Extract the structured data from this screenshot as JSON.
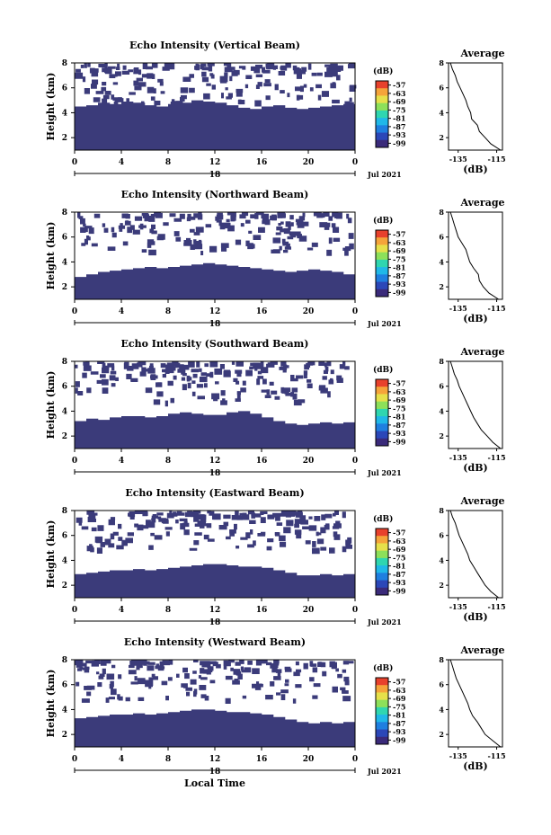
{
  "figure": {
    "colors": {
      "fill": "#3b3b7a",
      "colormap": [
        "#3a2a7a",
        "#2b47b8",
        "#1f7fe0",
        "#20b8e8",
        "#2fd6b0",
        "#8de05a",
        "#e6e04a",
        "#f5a43a",
        "#e8412c"
      ]
    }
  },
  "chart_data": [
    {
      "type": "heatmap",
      "title": "Echo Intensity (Vertical Beam)",
      "ylabel": "Height (km)",
      "xlabel": "",
      "x_ticks": [
        "0",
        "4",
        "8",
        "12",
        "16",
        "20",
        "0"
      ],
      "date_marker": "18",
      "date_label": "Jul 2021",
      "ylim": [
        1,
        8
      ],
      "y_ticks": [
        "2",
        "4",
        "6",
        "8"
      ],
      "colorbar": {
        "unit": "(dB)",
        "ticks": [
          "-57",
          "-63",
          "-69",
          "-75",
          "-81",
          "-87",
          "-93",
          "-99"
        ]
      },
      "echo_top_km": [
        4.5,
        4.6,
        4.8,
        4.7,
        4.9,
        4.8,
        4.6,
        4.5,
        4.7,
        4.8,
        5.0,
        4.9,
        4.8,
        4.6,
        4.4,
        4.3,
        4.5,
        4.6,
        4.4,
        4.3,
        4.4,
        4.5,
        4.6,
        4.7
      ],
      "profile": {
        "title": "Average",
        "xlabel": "(dB)",
        "x_ticks": [
          "-135",
          "-115"
        ],
        "xlim": [
          -140,
          -112
        ],
        "y_ticks": [
          "2",
          "4",
          "6",
          "8"
        ],
        "ylim": [
          1,
          8
        ],
        "height": [
          1,
          1.5,
          2,
          2.5,
          3,
          3.5,
          4,
          4.5,
          5,
          5.5,
          6,
          6.5,
          7,
          7.5,
          8
        ],
        "value": [
          -113,
          -118,
          -121,
          -124,
          -125,
          -128,
          -128.5,
          -130,
          -131,
          -132.5,
          -134,
          -135.5,
          -136.5,
          -138,
          -139
        ]
      }
    },
    {
      "type": "heatmap",
      "title": "Echo Intensity (Northward Beam)",
      "ylabel": "Height (km)",
      "xlabel": "",
      "x_ticks": [
        "0",
        "4",
        "8",
        "12",
        "16",
        "20",
        "0"
      ],
      "date_marker": "18",
      "date_label": "Jul 2021",
      "ylim": [
        1,
        8
      ],
      "y_ticks": [
        "2",
        "4",
        "6",
        "8"
      ],
      "colorbar": {
        "unit": "(dB)",
        "ticks": [
          "-57",
          "-63",
          "-69",
          "-75",
          "-81",
          "-87",
          "-93",
          "-99"
        ]
      },
      "echo_top_km": [
        2.8,
        3.0,
        3.2,
        3.3,
        3.4,
        3.5,
        3.6,
        3.5,
        3.6,
        3.7,
        3.8,
        3.9,
        3.8,
        3.7,
        3.6,
        3.5,
        3.4,
        3.3,
        3.2,
        3.3,
        3.4,
        3.3,
        3.2,
        3.0
      ],
      "profile": {
        "title": "Average",
        "xlabel": "(dB)",
        "x_ticks": [
          "-135",
          "-115"
        ],
        "xlim": [
          -140,
          -112
        ],
        "y_ticks": [
          "2",
          "4",
          "6",
          "8"
        ],
        "ylim": [
          1,
          8
        ],
        "height": [
          1,
          1.5,
          2,
          2.5,
          3,
          3.5,
          4,
          4.5,
          5,
          5.5,
          6,
          6.5,
          7,
          7.5,
          8
        ],
        "value": [
          -114,
          -119,
          -122,
          -124,
          -124.5,
          -127,
          -129,
          -130,
          -131,
          -133,
          -135,
          -136,
          -137,
          -138,
          -139
        ]
      }
    },
    {
      "type": "heatmap",
      "title": "Echo Intensity (Southward Beam)",
      "ylabel": "Height (km)",
      "xlabel": "",
      "x_ticks": [
        "0",
        "4",
        "8",
        "12",
        "16",
        "20",
        "0"
      ],
      "date_marker": "18",
      "date_label": "Jul 2021",
      "ylim": [
        1,
        8
      ],
      "y_ticks": [
        "2",
        "4",
        "6",
        "8"
      ],
      "colorbar": {
        "unit": "(dB)",
        "ticks": [
          "-57",
          "-63",
          "-69",
          "-75",
          "-81",
          "-87",
          "-93",
          "-99"
        ]
      },
      "echo_top_km": [
        3.2,
        3.4,
        3.3,
        3.5,
        3.6,
        3.6,
        3.5,
        3.6,
        3.8,
        3.9,
        3.8,
        3.7,
        3.7,
        3.9,
        4.0,
        3.8,
        3.5,
        3.2,
        3.0,
        2.9,
        3.0,
        3.1,
        3.0,
        3.1
      ],
      "profile": {
        "title": "Average",
        "xlabel": "(dB)",
        "x_ticks": [
          "-135",
          "-115"
        ],
        "xlim": [
          -140,
          -112
        ],
        "y_ticks": [
          "2",
          "4",
          "6",
          "8"
        ],
        "ylim": [
          1,
          8
        ],
        "height": [
          1,
          1.5,
          2,
          2.5,
          3,
          3.5,
          4,
          4.5,
          5,
          5.5,
          6,
          6.5,
          7,
          7.5,
          8
        ],
        "value": [
          -113,
          -117,
          -120,
          -123,
          -125,
          -127,
          -128.5,
          -130,
          -131.5,
          -133,
          -134.5,
          -135.5,
          -137,
          -138,
          -139
        ]
      }
    },
    {
      "type": "heatmap",
      "title": "Echo Intensity (Eastward Beam)",
      "ylabel": "Height (km)",
      "xlabel": "",
      "x_ticks": [
        "0",
        "4",
        "8",
        "12",
        "16",
        "20",
        "0"
      ],
      "date_marker": "18",
      "date_label": "Jul 2021",
      "ylim": [
        1,
        8
      ],
      "y_ticks": [
        "2",
        "4",
        "6",
        "8"
      ],
      "colorbar": {
        "unit": "(dB)",
        "ticks": [
          "-57",
          "-63",
          "-69",
          "-75",
          "-81",
          "-87",
          "-93",
          "-99"
        ]
      },
      "echo_top_km": [
        2.9,
        3.0,
        3.1,
        3.2,
        3.2,
        3.3,
        3.2,
        3.3,
        3.4,
        3.5,
        3.6,
        3.7,
        3.7,
        3.6,
        3.5,
        3.5,
        3.4,
        3.2,
        3.0,
        2.8,
        2.8,
        2.9,
        2.8,
        2.9
      ],
      "profile": {
        "title": "Average",
        "xlabel": "(dB)",
        "x_ticks": [
          "-135",
          "-115"
        ],
        "xlim": [
          -140,
          -112
        ],
        "y_ticks": [
          "2",
          "4",
          "6",
          "8"
        ],
        "ylim": [
          1,
          8
        ],
        "height": [
          1,
          1.5,
          2,
          2.5,
          3,
          3.5,
          4,
          4.5,
          5,
          5.5,
          6,
          6.5,
          7,
          7.5,
          8
        ],
        "value": [
          -114,
          -118,
          -121,
          -123,
          -125,
          -127,
          -129,
          -130,
          -131.5,
          -133,
          -134.5,
          -135.5,
          -136.5,
          -138,
          -139
        ]
      }
    },
    {
      "type": "heatmap",
      "title": "Echo Intensity (Westward Beam)",
      "ylabel": "Height (km)",
      "xlabel": "Local Time",
      "x_ticks": [
        "0",
        "4",
        "8",
        "12",
        "16",
        "20",
        "0"
      ],
      "date_marker": "18",
      "date_label": "Jul 2021",
      "ylim": [
        1,
        8
      ],
      "y_ticks": [
        "2",
        "4",
        "6",
        "8"
      ],
      "colorbar": {
        "unit": "(dB)",
        "ticks": [
          "-57",
          "-63",
          "-69",
          "-75",
          "-81",
          "-87",
          "-93",
          "-99"
        ]
      },
      "echo_top_km": [
        3.3,
        3.4,
        3.5,
        3.6,
        3.6,
        3.7,
        3.6,
        3.7,
        3.8,
        3.9,
        4.0,
        4.0,
        3.9,
        3.8,
        3.8,
        3.7,
        3.6,
        3.4,
        3.2,
        3.0,
        2.9,
        3.0,
        2.9,
        3.0
      ],
      "profile": {
        "title": "Average",
        "xlabel": "(dB)",
        "x_ticks": [
          "-135",
          "-115"
        ],
        "xlim": [
          -140,
          -112
        ],
        "y_ticks": [
          "2",
          "4",
          "6",
          "8"
        ],
        "ylim": [
          1,
          8
        ],
        "height": [
          1,
          1.5,
          2,
          2.5,
          3,
          3.5,
          4,
          4.5,
          5,
          5.5,
          6,
          6.5,
          7,
          7.5,
          8
        ],
        "value": [
          -113,
          -117,
          -121,
          -123,
          -125,
          -127.5,
          -129,
          -130,
          -131.5,
          -133,
          -134.5,
          -136,
          -137,
          -138,
          -139
        ]
      }
    }
  ]
}
